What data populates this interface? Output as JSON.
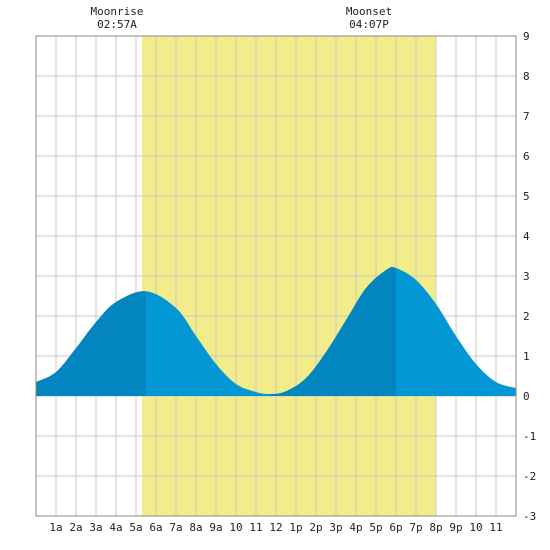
{
  "chart_data": {
    "type": "area",
    "x_unit": "hour of day",
    "xlim": [
      0,
      24
    ],
    "ylim": [
      -3,
      9
    ],
    "y_ticks": [
      -3,
      -2,
      -1,
      0,
      1,
      2,
      3,
      4,
      5,
      6,
      7,
      8,
      9
    ],
    "x_ticks": [
      {
        "x": 1,
        "label": "1a"
      },
      {
        "x": 2,
        "label": "2a"
      },
      {
        "x": 3,
        "label": "3a"
      },
      {
        "x": 4,
        "label": "4a"
      },
      {
        "x": 5,
        "label": "5a"
      },
      {
        "x": 6,
        "label": "6a"
      },
      {
        "x": 7,
        "label": "7a"
      },
      {
        "x": 8,
        "label": "8a"
      },
      {
        "x": 9,
        "label": "9a"
      },
      {
        "x": 10,
        "label": "10"
      },
      {
        "x": 11,
        "label": "11"
      },
      {
        "x": 12,
        "label": "12"
      },
      {
        "x": 13,
        "label": "1p"
      },
      {
        "x": 14,
        "label": "2p"
      },
      {
        "x": 15,
        "label": "3p"
      },
      {
        "x": 16,
        "label": "4p"
      },
      {
        "x": 17,
        "label": "5p"
      },
      {
        "x": 18,
        "label": "6p"
      },
      {
        "x": 19,
        "label": "7p"
      },
      {
        "x": 20,
        "label": "8p"
      },
      {
        "x": 21,
        "label": "9p"
      },
      {
        "x": 22,
        "label": "10"
      },
      {
        "x": 23,
        "label": "11"
      }
    ],
    "daylight": {
      "start": 5.3,
      "end": 20.0
    },
    "series": [
      {
        "points": [
          [
            0,
            0.35
          ],
          [
            1,
            0.6
          ],
          [
            2,
            1.2
          ],
          [
            3,
            1.85
          ],
          [
            4,
            2.35
          ],
          [
            5.5,
            2.62
          ],
          [
            7,
            2.2
          ],
          [
            8,
            1.5
          ],
          [
            9,
            0.8
          ],
          [
            10,
            0.3
          ],
          [
            11,
            0.1
          ],
          [
            11.7,
            0.05
          ],
          [
            12.5,
            0.12
          ],
          [
            13.5,
            0.45
          ],
          [
            14.5,
            1.1
          ],
          [
            15.5,
            1.9
          ],
          [
            16.5,
            2.7
          ],
          [
            17.5,
            3.15
          ],
          [
            18,
            3.2
          ],
          [
            19,
            2.9
          ],
          [
            20,
            2.3
          ],
          [
            21,
            1.5
          ],
          [
            22,
            0.8
          ],
          [
            23,
            0.35
          ],
          [
            24,
            0.2
          ]
        ]
      }
    ],
    "extremes": [
      {
        "x": 5.5,
        "y": 2.62,
        "kind": "high"
      },
      {
        "x": 11.7,
        "y": 0.05,
        "kind": "low"
      },
      {
        "x": 18,
        "y": 3.2,
        "kind": "high"
      }
    ],
    "annotations": [
      {
        "title": "Moonrise",
        "time": "02:57A",
        "x": 5.3
      },
      {
        "title": "Moonset",
        "time": "04:07P",
        "x": 17.9
      }
    ],
    "colors": {
      "daylight": "#f3ec8a",
      "rising": "#0385c0",
      "falling": "#0497d6",
      "grid": "#c8c8c8",
      "frame": "#888888"
    },
    "grid": true
  }
}
